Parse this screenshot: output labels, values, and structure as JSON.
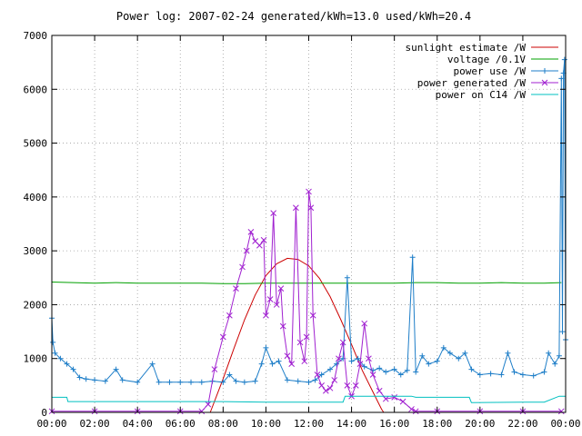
{
  "chart_data": {
    "type": "line",
    "title": "Power log: 2007-02-24 generated/kWh=13.0 used/kWh=20.4",
    "xlabel": "",
    "ylabel": "",
    "xlim": [
      0,
      24
    ],
    "ylim": [
      0,
      7000
    ],
    "x_ticks": [
      "00:00",
      "02:00",
      "04:00",
      "06:00",
      "08:00",
      "10:00",
      "12:00",
      "14:00",
      "16:00",
      "18:00",
      "20:00",
      "22:00",
      "00:00"
    ],
    "y_ticks": [
      "0",
      "1000",
      "2000",
      "3000",
      "4000",
      "5000",
      "6000",
      "7000"
    ],
    "legend_position": "top-right",
    "series": [
      {
        "name": "sunlight estimate /W",
        "color": "#cc0000",
        "style": "line",
        "points": [
          [
            7.4,
            0
          ],
          [
            8.0,
            620
          ],
          [
            8.5,
            1180
          ],
          [
            9.0,
            1720
          ],
          [
            9.5,
            2180
          ],
          [
            10.0,
            2540
          ],
          [
            10.5,
            2760
          ],
          [
            11.0,
            2860
          ],
          [
            11.5,
            2840
          ],
          [
            12.0,
            2720
          ],
          [
            12.5,
            2490
          ],
          [
            13.0,
            2150
          ],
          [
            13.5,
            1720
          ],
          [
            14.0,
            1260
          ],
          [
            14.5,
            780
          ],
          [
            15.0,
            380
          ],
          [
            15.4,
            60
          ],
          [
            15.5,
            0
          ]
        ]
      },
      {
        "name": "voltage /0.1V",
        "color": "#00a000",
        "style": "line",
        "points": [
          [
            0,
            2420
          ],
          [
            1.0,
            2410
          ],
          [
            2.0,
            2400
          ],
          [
            3.0,
            2410
          ],
          [
            4.0,
            2400
          ],
          [
            5.0,
            2400
          ],
          [
            6.0,
            2400
          ],
          [
            7.0,
            2400
          ],
          [
            8.0,
            2390
          ],
          [
            9.0,
            2390
          ],
          [
            10.0,
            2400
          ],
          [
            11.0,
            2400
          ],
          [
            12.0,
            2400
          ],
          [
            13.0,
            2400
          ],
          [
            14.0,
            2400
          ],
          [
            15.0,
            2400
          ],
          [
            16.0,
            2400
          ],
          [
            17.0,
            2410
          ],
          [
            18.0,
            2410
          ],
          [
            19.0,
            2400
          ],
          [
            20.0,
            2400
          ],
          [
            21.0,
            2410
          ],
          [
            22.0,
            2400
          ],
          [
            23.0,
            2400
          ],
          [
            23.8,
            2410
          ]
        ]
      },
      {
        "name": "power use /W",
        "color": "#1e7ec8",
        "style": "line-plus",
        "points": [
          [
            0,
            1750
          ],
          [
            0.05,
            1300
          ],
          [
            0.15,
            1100
          ],
          [
            0.4,
            1000
          ],
          [
            0.7,
            900
          ],
          [
            1.0,
            800
          ],
          [
            1.3,
            650
          ],
          [
            1.6,
            620
          ],
          [
            2.0,
            600
          ],
          [
            2.5,
            580
          ],
          [
            3.0,
            800
          ],
          [
            3.3,
            600
          ],
          [
            4.0,
            560
          ],
          [
            4.7,
            900
          ],
          [
            5.0,
            560
          ],
          [
            5.5,
            560
          ],
          [
            6.0,
            560
          ],
          [
            6.5,
            560
          ],
          [
            7.0,
            560
          ],
          [
            7.5,
            580
          ],
          [
            8.0,
            560
          ],
          [
            8.3,
            700
          ],
          [
            8.6,
            580
          ],
          [
            9.0,
            560
          ],
          [
            9.5,
            580
          ],
          [
            9.8,
            900
          ],
          [
            10.0,
            1200
          ],
          [
            10.3,
            900
          ],
          [
            10.6,
            950
          ],
          [
            11.0,
            600
          ],
          [
            11.5,
            580
          ],
          [
            12.0,
            560
          ],
          [
            12.3,
            600
          ],
          [
            12.6,
            700
          ],
          [
            13.0,
            800
          ],
          [
            13.3,
            900
          ],
          [
            13.6,
            1000
          ],
          [
            13.8,
            2500
          ],
          [
            14.0,
            950
          ],
          [
            14.3,
            1000
          ],
          [
            14.6,
            850
          ],
          [
            15.0,
            780
          ],
          [
            15.3,
            820
          ],
          [
            15.6,
            750
          ],
          [
            16.0,
            800
          ],
          [
            16.3,
            700
          ],
          [
            16.6,
            780
          ],
          [
            16.85,
            2880
          ],
          [
            17.0,
            750
          ],
          [
            17.3,
            1050
          ],
          [
            17.6,
            900
          ],
          [
            18.0,
            950
          ],
          [
            18.3,
            1200
          ],
          [
            18.6,
            1100
          ],
          [
            19.0,
            1000
          ],
          [
            19.3,
            1100
          ],
          [
            19.6,
            800
          ],
          [
            20.0,
            700
          ],
          [
            20.5,
            720
          ],
          [
            21.0,
            700
          ],
          [
            21.3,
            1100
          ],
          [
            21.6,
            750
          ],
          [
            22.0,
            700
          ],
          [
            22.5,
            680
          ],
          [
            23.0,
            750
          ],
          [
            23.2,
            1100
          ],
          [
            23.5,
            900
          ],
          [
            23.7,
            1050
          ],
          [
            23.8,
            6200
          ],
          [
            23.85,
            1500
          ],
          [
            23.9,
            6300
          ],
          [
            23.95,
            6550
          ],
          [
            24.0,
            1350
          ]
        ]
      },
      {
        "name": "power generated /W",
        "color": "#a020d0",
        "style": "line-cross",
        "points": [
          [
            0,
            20
          ],
          [
            2.0,
            20
          ],
          [
            4.0,
            20
          ],
          [
            6.0,
            20
          ],
          [
            7.0,
            20
          ],
          [
            7.3,
            150
          ],
          [
            7.6,
            800
          ],
          [
            8.0,
            1400
          ],
          [
            8.3,
            1800
          ],
          [
            8.6,
            2300
          ],
          [
            8.9,
            2700
          ],
          [
            9.1,
            3000
          ],
          [
            9.3,
            3350
          ],
          [
            9.5,
            3180
          ],
          [
            9.7,
            3100
          ],
          [
            9.9,
            3200
          ],
          [
            10.0,
            1800
          ],
          [
            10.2,
            2100
          ],
          [
            10.35,
            3700
          ],
          [
            10.5,
            2000
          ],
          [
            10.7,
            2300
          ],
          [
            10.8,
            1600
          ],
          [
            11.0,
            1050
          ],
          [
            11.2,
            900
          ],
          [
            11.4,
            3800
          ],
          [
            11.6,
            1300
          ],
          [
            11.8,
            950
          ],
          [
            11.9,
            1400
          ],
          [
            12.0,
            4100
          ],
          [
            12.1,
            3800
          ],
          [
            12.2,
            1800
          ],
          [
            12.4,
            700
          ],
          [
            12.6,
            500
          ],
          [
            12.8,
            400
          ],
          [
            13.0,
            450
          ],
          [
            13.2,
            600
          ],
          [
            13.4,
            1000
          ],
          [
            13.6,
            1300
          ],
          [
            13.8,
            500
          ],
          [
            14.0,
            300
          ],
          [
            14.2,
            500
          ],
          [
            14.4,
            900
          ],
          [
            14.6,
            1650
          ],
          [
            14.8,
            1000
          ],
          [
            15.0,
            700
          ],
          [
            15.3,
            400
          ],
          [
            15.6,
            250
          ],
          [
            16.0,
            280
          ],
          [
            16.4,
            200
          ],
          [
            16.8,
            60
          ],
          [
            17.0,
            20
          ],
          [
            18.0,
            20
          ],
          [
            20.0,
            20
          ],
          [
            22.0,
            20
          ],
          [
            23.8,
            20
          ]
        ]
      },
      {
        "name": "power on C14 /W",
        "color": "#00c0c0",
        "style": "line",
        "points": [
          [
            0,
            280
          ],
          [
            0.7,
            280
          ],
          [
            0.75,
            200
          ],
          [
            2.0,
            200
          ],
          [
            4.0,
            200
          ],
          [
            6.0,
            200
          ],
          [
            8.0,
            200
          ],
          [
            10.0,
            190
          ],
          [
            12.0,
            190
          ],
          [
            13.6,
            190
          ],
          [
            13.7,
            300
          ],
          [
            15.0,
            300
          ],
          [
            16.0,
            300
          ],
          [
            16.8,
            300
          ],
          [
            17.0,
            280
          ],
          [
            19.5,
            280
          ],
          [
            19.6,
            180
          ],
          [
            22.0,
            190
          ],
          [
            23.0,
            190
          ],
          [
            23.7,
            300
          ],
          [
            24.0,
            300
          ]
        ]
      }
    ]
  }
}
